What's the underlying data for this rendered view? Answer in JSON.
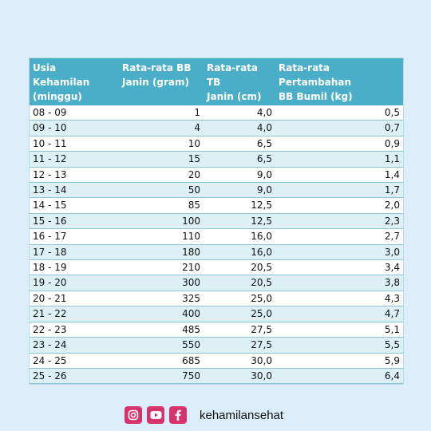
{
  "table": {
    "headers": [
      "Usia Kehamilan\n(minggu)",
      "Rata-rata BB\nJanin (gram)",
      "Rata-rata TB\nJanin (cm)",
      "Rata-rata Pertambahan\nBB Bumil (kg)"
    ],
    "rows": [
      [
        "08 - 09",
        "1",
        "4,0",
        "0,5"
      ],
      [
        "09 - 10",
        "4",
        "4,0",
        "0,7"
      ],
      [
        "10 - 11",
        "10",
        "6,5",
        "0,9"
      ],
      [
        "11 - 12",
        "15",
        "6,5",
        "1,1"
      ],
      [
        "12 - 13",
        "20",
        "9,0",
        "1,4"
      ],
      [
        "13 - 14",
        "50",
        "9,0",
        "1,7"
      ],
      [
        "14 - 15",
        "85",
        "12,5",
        "2,0"
      ],
      [
        "15 - 16",
        "100",
        "12,5",
        "2,3"
      ],
      [
        "16 - 17",
        "110",
        "16,0",
        "2,7"
      ],
      [
        "17 - 18",
        "180",
        "16,0",
        "3,0"
      ],
      [
        "18 - 19",
        "210",
        "20,5",
        "3,4"
      ],
      [
        "19 - 20",
        "300",
        "20,5",
        "3,8"
      ],
      [
        "20 - 21",
        "325",
        "25,0",
        "4,3"
      ],
      [
        "21 - 22",
        "400",
        "25,0",
        "4,7"
      ],
      [
        "22 - 23",
        "485",
        "27,5",
        "5,1"
      ],
      [
        "23 - 24",
        "550",
        "27,5",
        "5,5"
      ],
      [
        "24 - 25",
        "685",
        "30,0",
        "5,9"
      ],
      [
        "25 - 26",
        "750",
        "30,0",
        "6,4"
      ]
    ]
  },
  "footer": {
    "icons": [
      "instagram-icon",
      "youtube-icon",
      "facebook-icon"
    ],
    "handle": "kehamilansehat"
  },
  "colors": {
    "page_bg": "#dbeefa",
    "header_bg": "#4aaec8",
    "row_alt": "#dcf0f5",
    "icon_bg": "#d6336c"
  }
}
